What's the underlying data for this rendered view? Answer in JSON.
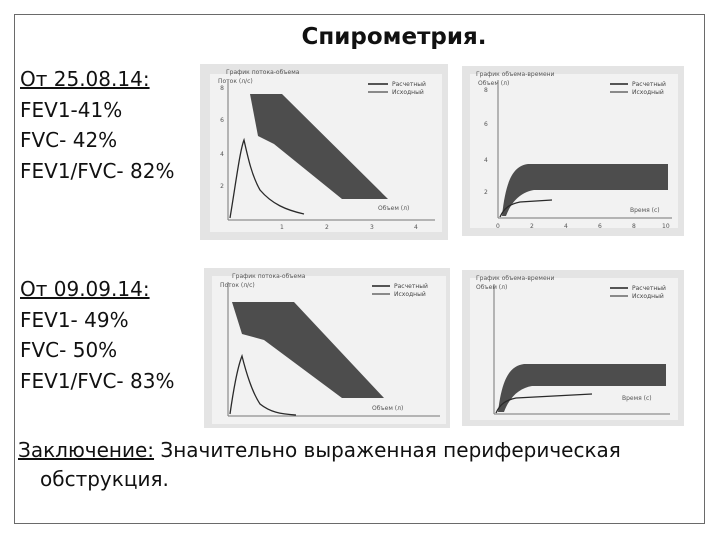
{
  "title": "Спирометрия.",
  "exam1": {
    "date": "От 25.08.14:",
    "fev1": "FEV1-41%",
    "fvc": "FVC- 42%",
    "ratio": "FEV1/FVC- 82%"
  },
  "exam2": {
    "date": "От 09.09.14:",
    "fev1": "FEV1- 49%",
    "fvc": "FVC- 50%",
    "ratio": "FEV1/FVC- 83%"
  },
  "conclusion": {
    "label": "Заключение:",
    "text_line1": " Значительно выраженная периферическая",
    "text_line2": "обструкция."
  },
  "flow_volume_photo": {
    "title": "График потока-объема",
    "yaxis": "Поток (л/с)",
    "xaxis": "Объем (л)",
    "legend_predicted": "Расчетный",
    "legend_actual": "Исходный",
    "yticks": [
      "8",
      "6",
      "4",
      "2"
    ],
    "xticks": [
      "1",
      "2",
      "3",
      "4"
    ]
  },
  "volume_time_photo": {
    "title": "График объема-времени",
    "yaxis": "Объем (л)",
    "xaxis": "Время (с)",
    "legend_predicted": "Расчетный",
    "legend_actual": "Исходный",
    "yticks": [
      "8",
      "6",
      "4",
      "2"
    ],
    "xticks": [
      "0",
      "2",
      "4",
      "6",
      "8",
      "10"
    ]
  },
  "colors": {
    "photo_bg": "#e4e4e4",
    "plot_bg": "#f2f2f2",
    "band": "#4d4d4d",
    "curve": "#2a2a2a"
  }
}
